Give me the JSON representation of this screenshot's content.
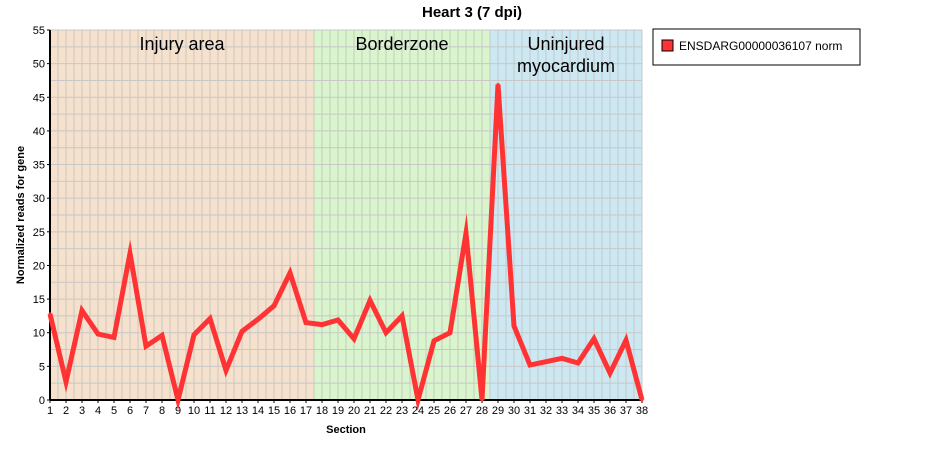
{
  "colors": {
    "series": "#ff3333",
    "injury_region": "#f5e1cc",
    "borderzone_region": "#d8f5cc",
    "uninjured_region": "#cce8f2",
    "grid": "#c8c8c8",
    "axis": "#000000"
  },
  "chart_data": {
    "type": "line",
    "title": "Heart 3 (7 dpi)",
    "xlabel": "Section",
    "ylabel": "Normalized reads for gene",
    "xlim": [
      1,
      38
    ],
    "ylim": [
      0,
      55
    ],
    "y_ticks": [
      0,
      5,
      10,
      15,
      20,
      25,
      30,
      35,
      40,
      45,
      50,
      55
    ],
    "x": [
      1,
      2,
      3,
      4,
      5,
      6,
      7,
      8,
      9,
      10,
      11,
      12,
      13,
      14,
      15,
      16,
      17,
      18,
      19,
      20,
      21,
      22,
      23,
      24,
      25,
      26,
      27,
      28,
      29,
      30,
      31,
      32,
      33,
      34,
      35,
      36,
      37,
      38
    ],
    "series": [
      {
        "name": "ENSDARG00000036107 norm",
        "values": [
          12.8,
          2.7,
          13.3,
          9.8,
          9.3,
          21.8,
          8.0,
          9.6,
          0.0,
          9.7,
          12.1,
          4.4,
          10.2,
          12.0,
          14.0,
          18.9,
          11.5,
          11.2,
          11.9,
          9.1,
          14.8,
          10.0,
          12.5,
          0.0,
          8.8,
          10.0,
          24.8,
          0.0,
          46.9,
          11.0,
          5.2,
          5.7,
          6.2,
          5.5,
          9.1,
          4.0,
          8.9,
          0.0
        ]
      }
    ],
    "regions": [
      {
        "label": "Injury area",
        "x_start": 1,
        "x_end": 17.5
      },
      {
        "label": "Borderzone",
        "x_start": 17.5,
        "x_end": 28.5
      },
      {
        "label": "Uninjured\nmyocardium",
        "x_start": 28.5,
        "x_end": 38
      }
    ],
    "grid": true,
    "legend_position": "right"
  }
}
